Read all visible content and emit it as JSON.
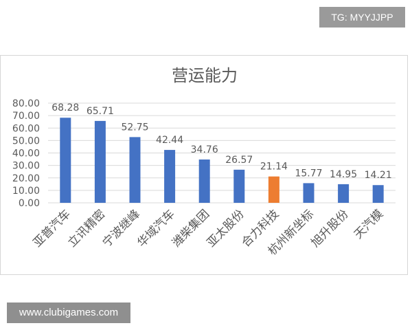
{
  "watermark_top": "TG: MYYJJPP",
  "watermark_bottom": "www.clubigames.com",
  "chart_data": {
    "type": "bar",
    "title": "营运能力",
    "categories": [
      "亚普汽车",
      "立讯精密",
      "宁波继峰",
      "华域汽车",
      "潍柴集团",
      "亚太股份",
      "合力科技",
      "杭州新坐标",
      "旭升股份",
      "天汽模"
    ],
    "values": [
      68.28,
      65.71,
      52.75,
      42.44,
      34.76,
      26.57,
      21.14,
      15.77,
      14.95,
      14.21
    ],
    "value_labels": [
      "68.28",
      "65.71",
      "52.75",
      "42.44",
      "34.76",
      "26.57",
      "21.14",
      "15.77",
      "14.95",
      "14.21"
    ],
    "ylim": [
      0,
      80
    ],
    "yticks": [
      "0.00",
      "10.00",
      "20.00",
      "30.00",
      "40.00",
      "50.00",
      "60.00",
      "70.00",
      "80.00"
    ],
    "grid": true,
    "colors": {
      "default": "#4472c4",
      "highlight": "#ed7d31",
      "grid": "#d9d9d9",
      "text": "#595959"
    },
    "highlight_index": 6
  }
}
